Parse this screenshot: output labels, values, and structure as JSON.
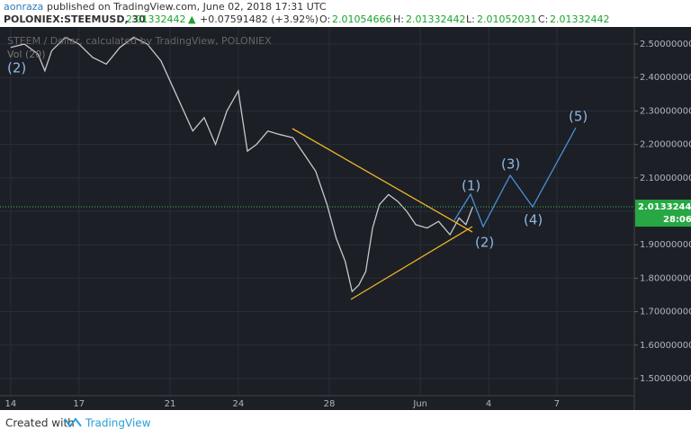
{
  "header": {
    "author": "aonraza",
    "published": "published on TradingView.com, June 02, 2018 17:31 UTC",
    "symbol": "POLONIEX:STEEMUSD, 30",
    "price": "2.01332442",
    "arrow": "▲",
    "change": "+0.07591482 (+3.92%)",
    "o_label": "O:",
    "o": "2.01054666",
    "h_label": "H:",
    "h": "2.01332442",
    "l_label": "L:",
    "l": "2.01052031",
    "c_label": "C:",
    "c": "2.01332442"
  },
  "chart_data": {
    "type": "line",
    "x": [
      14,
      14.6,
      15.2,
      15.5,
      15.8,
      16.4,
      17,
      17.6,
      18.2,
      18.8,
      19.4,
      20,
      20.6,
      21.2,
      21.6,
      22,
      22.5,
      23,
      23.5,
      24,
      24.4,
      24.8,
      25.3,
      25.8,
      26.4,
      26.9,
      27.4,
      27.9,
      28.3,
      28.7,
      29,
      29.3,
      29.6,
      29.9,
      30.2,
      30.6,
      31,
      31.4,
      31.8,
      32.3,
      32.8,
      33.3,
      33.7,
      34,
      34.3
    ],
    "series": [
      {
        "name": "STEEM / Dollar, calculated by TradingView, POLONIEX",
        "color": "#c8c8c8",
        "values": [
          2.49,
          2.5,
          2.47,
          2.42,
          2.48,
          2.52,
          2.5,
          2.46,
          2.44,
          2.49,
          2.52,
          2.5,
          2.45,
          2.36,
          2.3,
          2.24,
          2.28,
          2.2,
          2.3,
          2.36,
          2.18,
          2.2,
          2.24,
          2.23,
          2.22,
          2.17,
          2.12,
          2.02,
          1.92,
          1.85,
          1.76,
          1.78,
          1.82,
          1.95,
          2.02,
          2.05,
          2.03,
          2.0,
          1.96,
          1.95,
          1.97,
          1.93,
          1.98,
          1.96,
          2.01332442
        ]
      }
    ],
    "xlim": [
      13.53,
      41.4
    ],
    "xticks": [
      14,
      17,
      21,
      24,
      28,
      {
        "value": 32,
        "label": "Jun"
      },
      {
        "value": 35,
        "label": "4"
      },
      {
        "value": 38,
        "label": "7"
      }
    ],
    "ylim": [
      1.45,
      2.55
    ],
    "yticks": [
      {
        "value": 1.5,
        "label": "1.50000000"
      },
      {
        "value": 1.6,
        "label": "1.60000000"
      },
      {
        "value": 1.7,
        "label": "1.70000000"
      },
      {
        "value": 1.8,
        "label": "1.80000000"
      },
      {
        "value": 1.9,
        "label": "1.90000000"
      },
      {
        "value": 2.0,
        "label": "2.00000000"
      },
      {
        "value": 2.1,
        "label": "2.10000000"
      },
      {
        "value": 2.2,
        "label": "2.20000000"
      },
      {
        "value": 2.3,
        "label": "2.30000000"
      },
      {
        "value": 2.4,
        "label": "2.40000000"
      },
      {
        "value": 2.5,
        "label": "2.50000000"
      }
    ],
    "grid": true,
    "last_price": 2.01332442,
    "countdown": "28:06",
    "indicator": "Vol (20)",
    "annotations": [
      "(2)",
      "(1)",
      "(2)",
      "(3)",
      "(4)",
      "(5)"
    ]
  },
  "footer": {
    "created": "Created with",
    "brand": "TradingView"
  }
}
